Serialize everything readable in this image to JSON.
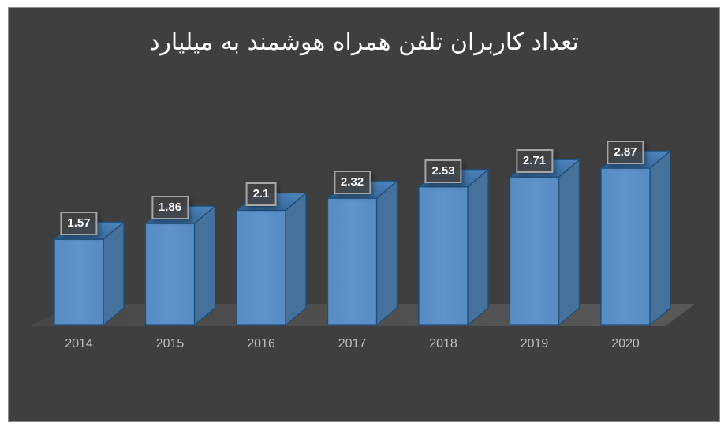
{
  "chart_data": {
    "type": "bar",
    "variant": "3d-column",
    "title": "تعداد کاربران تلفن همراه هوشمند به میلیارد",
    "categories": [
      "2014",
      "2015",
      "2016",
      "2017",
      "2018",
      "2019",
      "2020"
    ],
    "values": [
      1.57,
      1.86,
      2.1,
      2.32,
      2.53,
      2.71,
      2.87
    ],
    "value_labels": [
      "1.57",
      "1.86",
      "2.1",
      "2.32",
      "2.53",
      "2.71",
      "2.87"
    ],
    "xlabel": "",
    "ylabel": "",
    "ylim": [
      0,
      3
    ],
    "grid": false,
    "legend": false,
    "axis_lines": false,
    "colors": {
      "page_margin": "#FFFFFF",
      "plot_background": "#3F3F3F",
      "plot_border": "#8A8A8A",
      "bar_front": "#578CC3",
      "bar_front_highlight": "#5E93CA",
      "bar_side": "#46719C",
      "bar_top_dark": "#2E5D8C",
      "bar_top_light": "#4F86BC",
      "bar_edge": "#1F4E79",
      "floor_dark": "#474747",
      "floor_light": "#585858",
      "value_box_border": "#A6A6A6",
      "value_text": "#FFFFFF",
      "axis_text": "#BDBDBD",
      "title_text": "#FFFFFF"
    }
  }
}
